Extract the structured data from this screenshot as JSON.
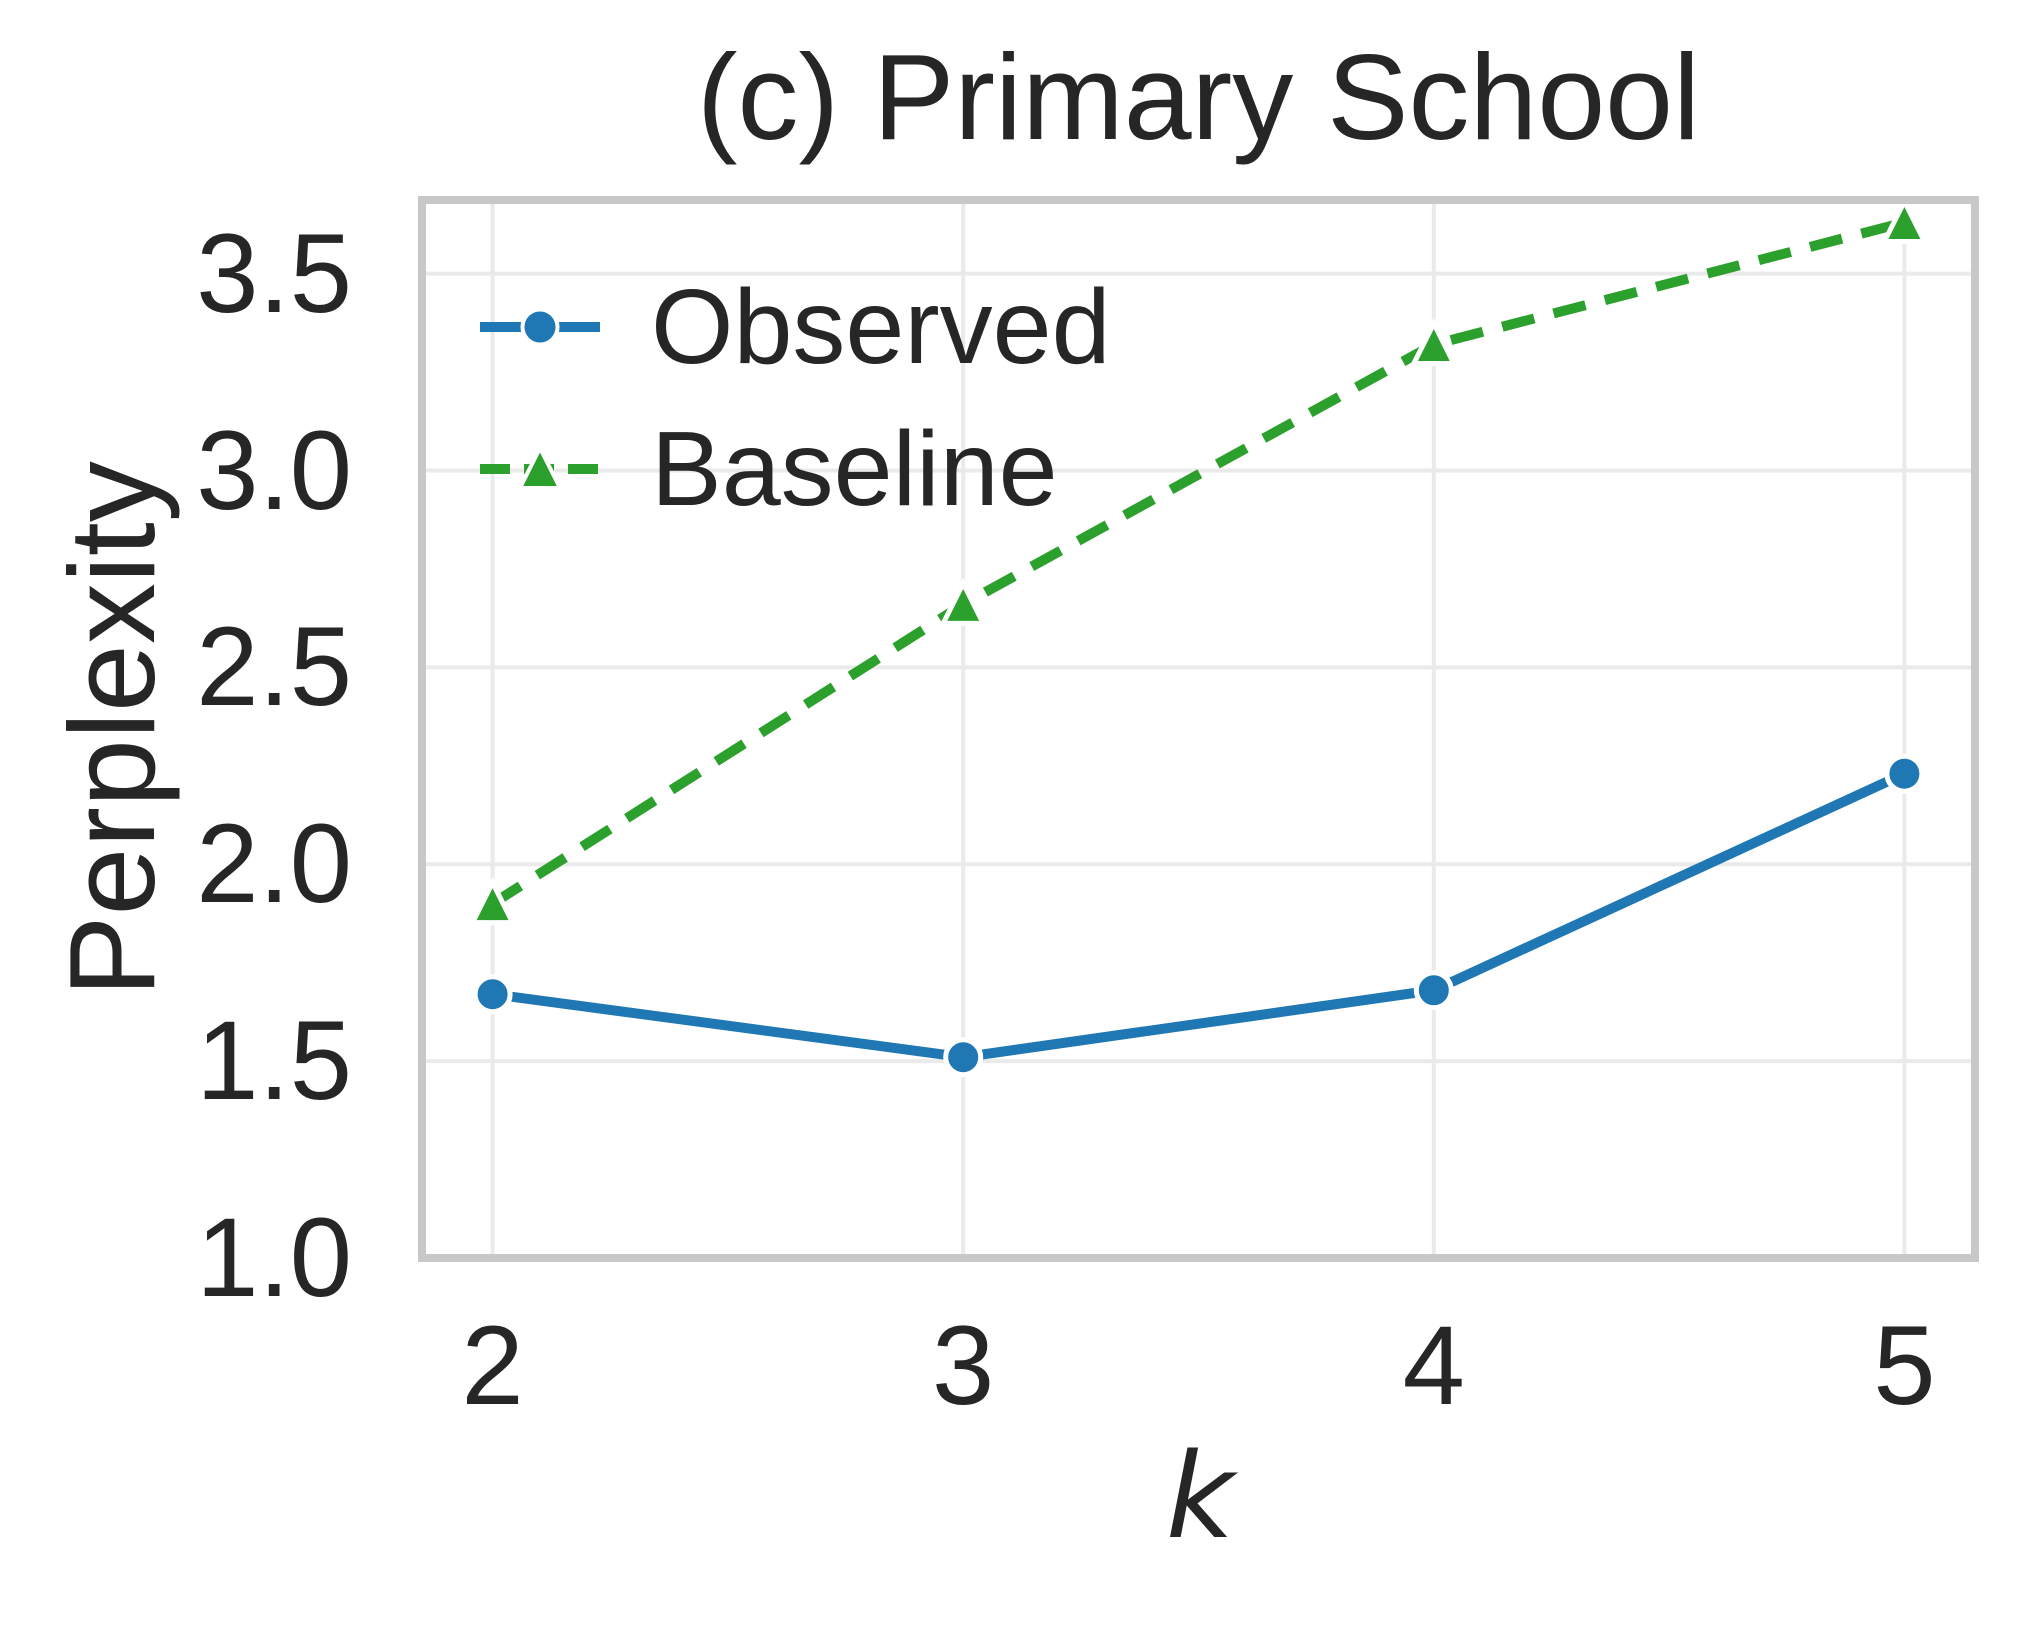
{
  "title": "(c) Primary School",
  "xlabel": "k",
  "ylabel": "Perplexity",
  "colors": {
    "observed": "#1f77b4",
    "baseline": "#2ca02c",
    "grid": "#eaeaea",
    "spine": "#c8c8c8",
    "text": "#262626",
    "marker_edge": "#ffffff"
  },
  "legend": {
    "items": [
      {
        "label": "Observed"
      },
      {
        "label": "Baseline"
      }
    ]
  },
  "chart_data": {
    "type": "line",
    "x": [
      2,
      3,
      4,
      5
    ],
    "x_ticks": [
      2,
      3,
      4,
      5
    ],
    "y_ticks": [
      1.0,
      1.5,
      2.0,
      2.5,
      3.0,
      3.5
    ],
    "xlim": [
      1.85,
      5.15
    ],
    "ylim": [
      1.0,
      3.687
    ],
    "grid": true,
    "legend_position": "upper left",
    "title": "(c) Primary School",
    "xlabel": "k",
    "ylabel": "Perplexity",
    "series": [
      {
        "name": "Observed",
        "values": [
          1.67,
          1.51,
          1.68,
          2.23
        ],
        "color": "#1f77b4",
        "line_style": "solid",
        "marker": "circle"
      },
      {
        "name": "Baseline",
        "values": [
          1.9,
          2.66,
          3.32,
          3.63
        ],
        "color": "#2ca02c",
        "line_style": "dashed",
        "marker": "triangle"
      }
    ]
  }
}
